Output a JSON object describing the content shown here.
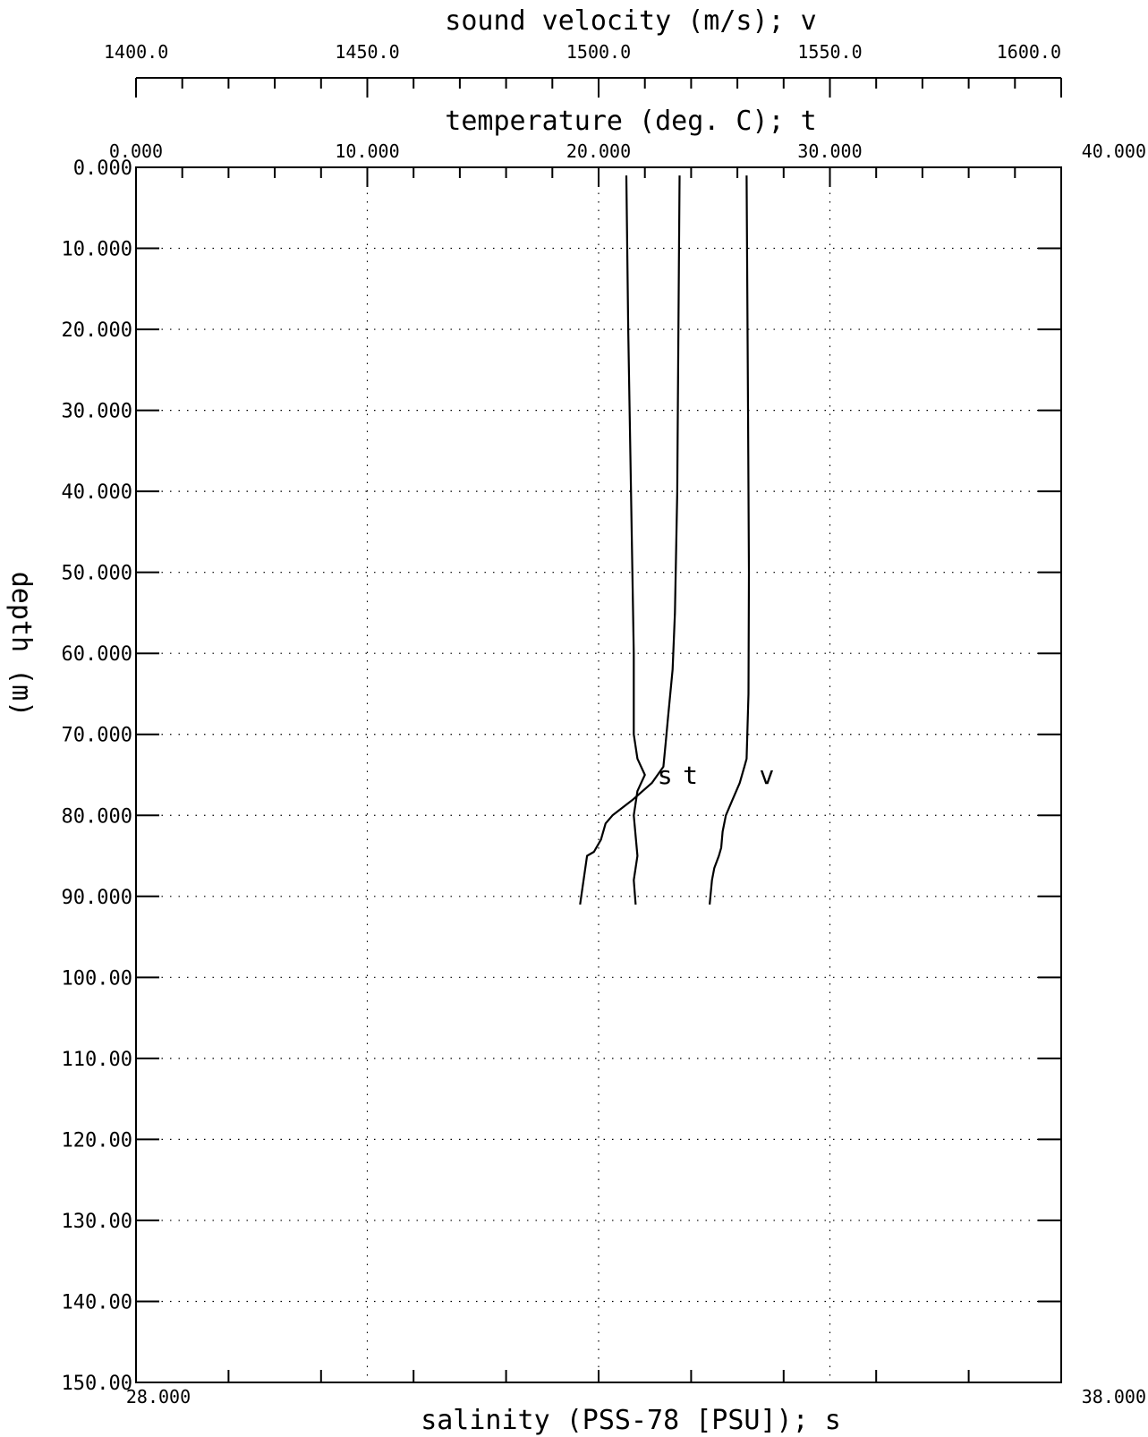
{
  "chart_data": {
    "type": "line",
    "title": "",
    "axes": {
      "velocity": {
        "title": "sound velocity (m/s); v",
        "range": [
          1400,
          1600
        ],
        "major_ticks": [
          1400,
          1450,
          1500,
          1550,
          1600
        ],
        "tick_labels": [
          "1400.0",
          "1450.0",
          "1500.0",
          "1550.0",
          "1600.0"
        ],
        "minor_step": 10
      },
      "temperature": {
        "title": "temperature (deg. C); t",
        "range": [
          0,
          40
        ],
        "major_ticks": [
          0,
          10,
          20,
          30,
          40
        ],
        "tick_labels": [
          "0.000",
          "10.000",
          "20.000",
          "30.000",
          "40.000"
        ],
        "minor_step": 2
      },
      "salinity": {
        "title": "salinity (PSS-78 [PSU]); s",
        "range": [
          28,
          38
        ],
        "major_ticks": [
          28,
          38
        ],
        "tick_labels": [
          "28.000",
          "38.000"
        ],
        "minor_step": 1
      },
      "depth": {
        "title": "depth (m)",
        "range": [
          0,
          150
        ],
        "inverted": true,
        "ticks": [
          0,
          10,
          20,
          30,
          40,
          50,
          60,
          70,
          80,
          90,
          100,
          110,
          120,
          130,
          140,
          150
        ],
        "tick_labels": [
          "0.000",
          "10.000",
          "20.000",
          "30.000",
          "40.000",
          "50.000",
          "60.000",
          "70.000",
          "80.000",
          "90.000",
          "100.00",
          "110.00",
          "120.00",
          "130.00",
          "140.00",
          "150.00"
        ]
      }
    },
    "grid": true,
    "series": [
      {
        "label": "t",
        "axis": "temperature",
        "label_at": {
          "value": 23.1,
          "depth": 75
        },
        "points": [
          [
            23.5,
            1
          ],
          [
            23.45,
            20
          ],
          [
            23.4,
            40
          ],
          [
            23.3,
            55
          ],
          [
            23.2,
            62
          ],
          [
            23.0,
            68
          ],
          [
            22.9,
            71
          ],
          [
            22.8,
            74
          ],
          [
            22.3,
            76
          ],
          [
            21.5,
            78
          ],
          [
            20.6,
            80
          ],
          [
            20.3,
            81
          ],
          [
            20.1,
            83
          ],
          [
            19.8,
            84.5
          ],
          [
            19.5,
            85
          ],
          [
            19.4,
            87
          ],
          [
            19.3,
            89
          ],
          [
            19.2,
            91
          ]
        ]
      },
      {
        "label": "v",
        "axis": "velocity",
        "label_at": {
          "value": 1532,
          "depth": 75
        },
        "points": [
          [
            1532.0,
            1
          ],
          [
            1532.3,
            30
          ],
          [
            1532.5,
            50
          ],
          [
            1532.4,
            65
          ],
          [
            1532.0,
            73
          ],
          [
            1531.5,
            74
          ],
          [
            1530.5,
            76
          ],
          [
            1529.0,
            78
          ],
          [
            1527.5,
            80
          ],
          [
            1526.8,
            82
          ],
          [
            1526.5,
            84
          ],
          [
            1526.0,
            85
          ],
          [
            1525.0,
            86.5
          ],
          [
            1524.5,
            88
          ],
          [
            1524.0,
            91
          ]
        ]
      },
      {
        "label": "s",
        "axis": "salinity",
        "label_at": {
          "value": 33.5,
          "depth": 75
        },
        "points": [
          [
            33.3,
            1
          ],
          [
            33.32,
            20
          ],
          [
            33.35,
            40
          ],
          [
            33.38,
            60
          ],
          [
            33.38,
            70
          ],
          [
            33.42,
            73
          ],
          [
            33.5,
            75
          ],
          [
            33.42,
            77
          ],
          [
            33.38,
            80
          ],
          [
            33.42,
            85
          ],
          [
            33.38,
            88
          ],
          [
            33.4,
            91
          ]
        ]
      }
    ]
  }
}
